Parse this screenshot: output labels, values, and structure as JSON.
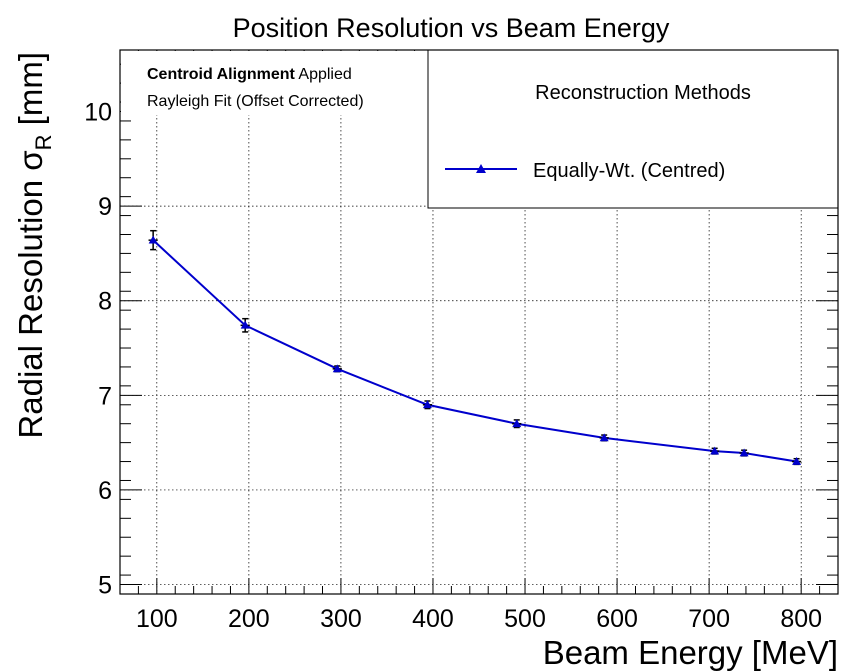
{
  "chart_data": {
    "type": "line",
    "title": "Position Resolution vs Beam Energy",
    "xlabel": "Beam Energy [MeV]",
    "ylabel_main": "Radial Resolution σ",
    "ylabel_sub": "R",
    "ylabel_unit": " [mm]",
    "xlim": [
      60,
      840
    ],
    "ylim": [
      4.9,
      10.65
    ],
    "xticks": [
      100,
      200,
      300,
      400,
      500,
      600,
      700,
      800
    ],
    "yticks": [
      5,
      6,
      7,
      8,
      9,
      10
    ],
    "grid": true,
    "series": [
      {
        "name": "Equally-Wt. (Centred)",
        "color": "#0000cc",
        "marker": "triangle",
        "x": [
          96,
          196,
          296,
          394,
          491,
          586,
          706,
          738,
          795
        ],
        "y": [
          8.64,
          7.74,
          7.28,
          6.9,
          6.7,
          6.55,
          6.41,
          6.39,
          6.3
        ],
        "yerr": [
          0.1,
          0.07,
          0.03,
          0.04,
          0.04,
          0.03,
          0.03,
          0.03,
          0.03
        ],
        "xerr": [
          5,
          5,
          5,
          5,
          5,
          5,
          5,
          5,
          5
        ]
      }
    ],
    "legend": {
      "title": "Reconstruction Methods",
      "placement": "top-right"
    },
    "annotation": {
      "bold": "Centroid Alignment",
      "rest": " Applied",
      "line2": "Rayleigh Fit (Offset Corrected)"
    }
  }
}
